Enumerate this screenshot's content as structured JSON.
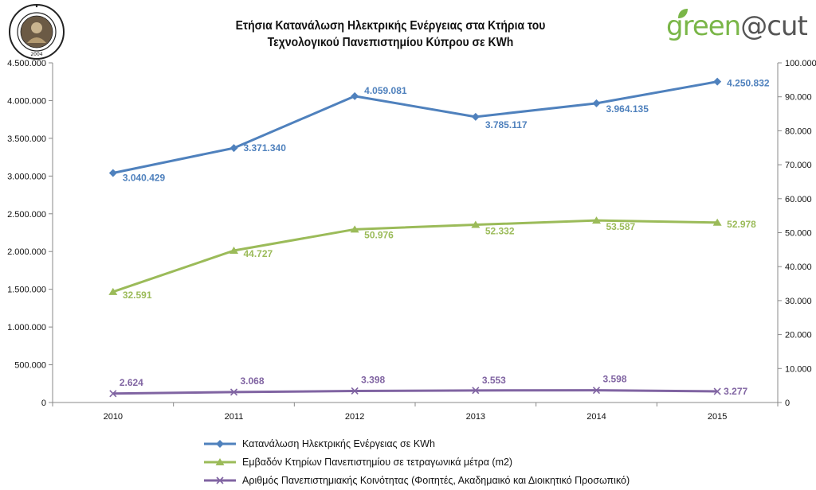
{
  "header": {
    "title_line1": "Ετήσια Κατανάλωση Ηλεκτρικής Ενέργειας στα Κτήρια του",
    "title_line2": "Τεχνολογικού Πανεπιστημίου Κύπρου  σε KWh",
    "seal_text": "ΤΕΧΝΟΛΟΓΙΚΟ ΠΑΝΕΠΙΣΤΗΜΙΟ ΚΥΠΡΟΥ 2004",
    "brand_left": "green",
    "brand_right": "@cut"
  },
  "chart_data": {
    "type": "line",
    "categories": [
      "2010",
      "2011",
      "2012",
      "2013",
      "2014",
      "2015"
    ],
    "y_left": {
      "ylim": [
        0,
        4500000
      ],
      "ticks": [
        "0",
        "500.000",
        "1.000.000",
        "1.500.000",
        "2.000.000",
        "2.500.000",
        "3.000.000",
        "3.500.000",
        "4.000.000",
        "4.500.000"
      ]
    },
    "y_right": {
      "ylim": [
        0,
        100000
      ],
      "ticks": [
        "0",
        "10.000",
        "20.000",
        "30.000",
        "40.000",
        "50.000",
        "60.000",
        "70.000",
        "80.000",
        "90.000",
        "100.000"
      ]
    },
    "grid": false,
    "legend_position": "bottom",
    "series": [
      {
        "name": "Κατανάλωση Ηλεκτρικής Ενέργειας σε KWh",
        "axis": "left",
        "color": "#4f81bd",
        "marker": "diamond",
        "values": [
          3040429,
          3371340,
          4059081,
          3785117,
          3964135,
          4250832
        ],
        "labels": [
          "3.040.429",
          "3.371.340",
          "4.059.081",
          "3.785.117",
          "3.964.135",
          "4.250.832"
        ]
      },
      {
        "name": "Εμβαδόν Κτηρίων Πανεπιστημίου σε τετραγωνικά μέτρα (m2)",
        "axis": "right",
        "color": "#9bbb59",
        "marker": "triangle",
        "values": [
          32591,
          44727,
          50976,
          52332,
          53587,
          52978
        ],
        "labels": [
          "32.591",
          "44.727",
          "50.976",
          "52.332",
          "53.587",
          "52.978"
        ]
      },
      {
        "name": "Αριθμός Πανεπιστημιακής Κοινότητας (Φοιτητές, Ακαδημαικό και Διοικητικό Προσωπικό)",
        "axis": "right",
        "color": "#8064a2",
        "marker": "x",
        "values": [
          2624,
          3068,
          3398,
          3553,
          3598,
          3277
        ],
        "labels": [
          "2.624",
          "3.068",
          "3.398",
          "3.553",
          "3.598",
          "3.277"
        ]
      }
    ]
  }
}
